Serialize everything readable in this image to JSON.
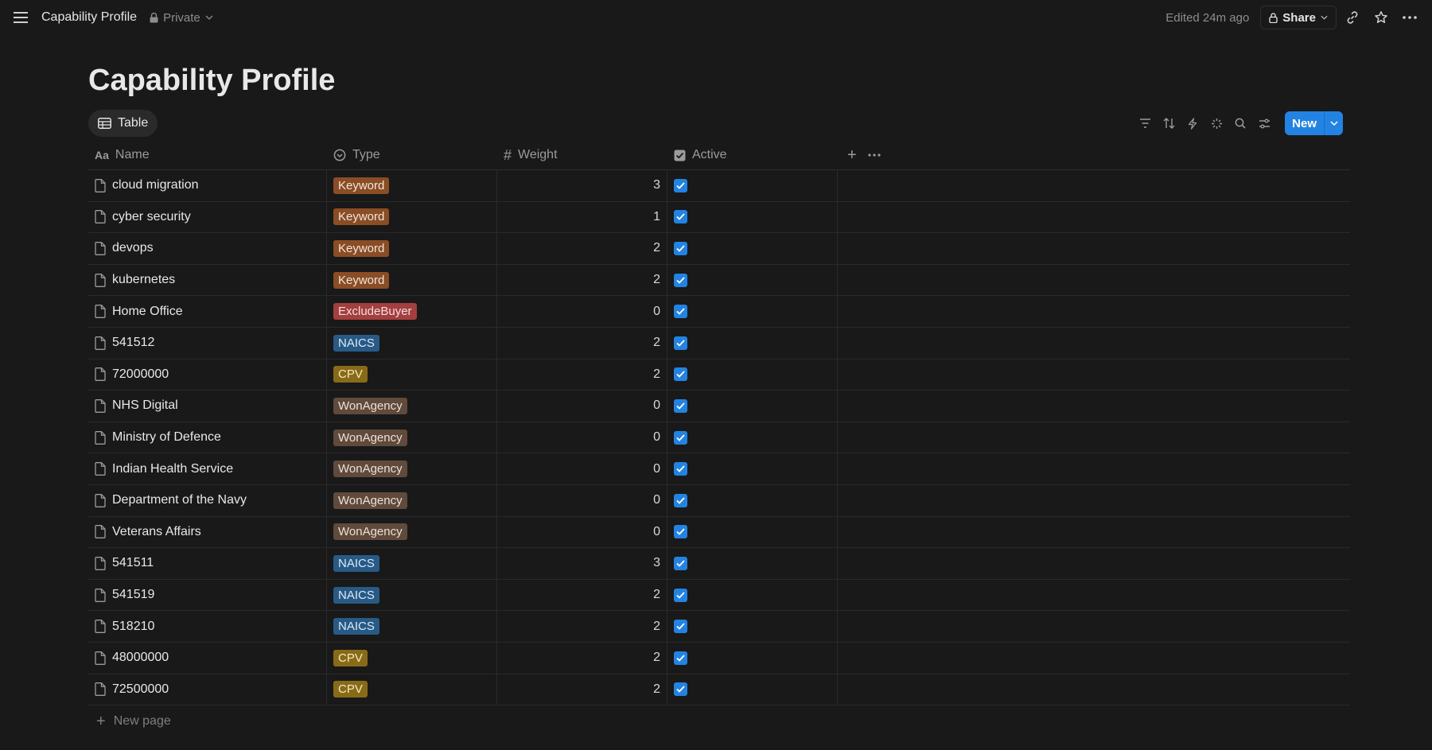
{
  "topbar": {
    "title": "Capability Profile",
    "privacy": "Private",
    "edited": "Edited 24m ago",
    "share_label": "Share"
  },
  "page": {
    "title": "Capability Profile"
  },
  "view": {
    "tab_label": "Table",
    "new_label": "New"
  },
  "columns": {
    "name": "Name",
    "type": "Type",
    "weight": "Weight",
    "active": "Active"
  },
  "rows": [
    {
      "name": "cloud migration",
      "type": "Keyword",
      "weight": "3",
      "active": true
    },
    {
      "name": "cyber security",
      "type": "Keyword",
      "weight": "1",
      "active": true
    },
    {
      "name": "devops",
      "type": "Keyword",
      "weight": "2",
      "active": true
    },
    {
      "name": "kubernetes",
      "type": "Keyword",
      "weight": "2",
      "active": true
    },
    {
      "name": "Home Office",
      "type": "ExcludeBuyer",
      "weight": "0",
      "active": true
    },
    {
      "name": "541512",
      "type": "NAICS",
      "weight": "2",
      "active": true
    },
    {
      "name": "72000000",
      "type": "CPV",
      "weight": "2",
      "active": true
    },
    {
      "name": "NHS Digital",
      "type": "WonAgency",
      "weight": "0",
      "active": true
    },
    {
      "name": "Ministry of Defence",
      "type": "WonAgency",
      "weight": "0",
      "active": true
    },
    {
      "name": "Indian Health Service",
      "type": "WonAgency",
      "weight": "0",
      "active": true
    },
    {
      "name": "Department of the Navy",
      "type": "WonAgency",
      "weight": "0",
      "active": true
    },
    {
      "name": "Veterans Affairs",
      "type": "WonAgency",
      "weight": "0",
      "active": true
    },
    {
      "name": "541511",
      "type": "NAICS",
      "weight": "3",
      "active": true
    },
    {
      "name": "541519",
      "type": "NAICS",
      "weight": "2",
      "active": true
    },
    {
      "name": "518210",
      "type": "NAICS",
      "weight": "2",
      "active": true
    },
    {
      "name": "48000000",
      "type": "CPV",
      "weight": "2",
      "active": true
    },
    {
      "name": "72500000",
      "type": "CPV",
      "weight": "2",
      "active": true
    }
  ],
  "new_page_label": "New page",
  "colors": {
    "Keyword": "#8a4d25",
    "ExcludeBuyer": "#a33f3f",
    "NAICS": "#285a86",
    "CPV": "#886b17",
    "WonAgency": "#5f4a3c",
    "accent": "#2383e2"
  }
}
